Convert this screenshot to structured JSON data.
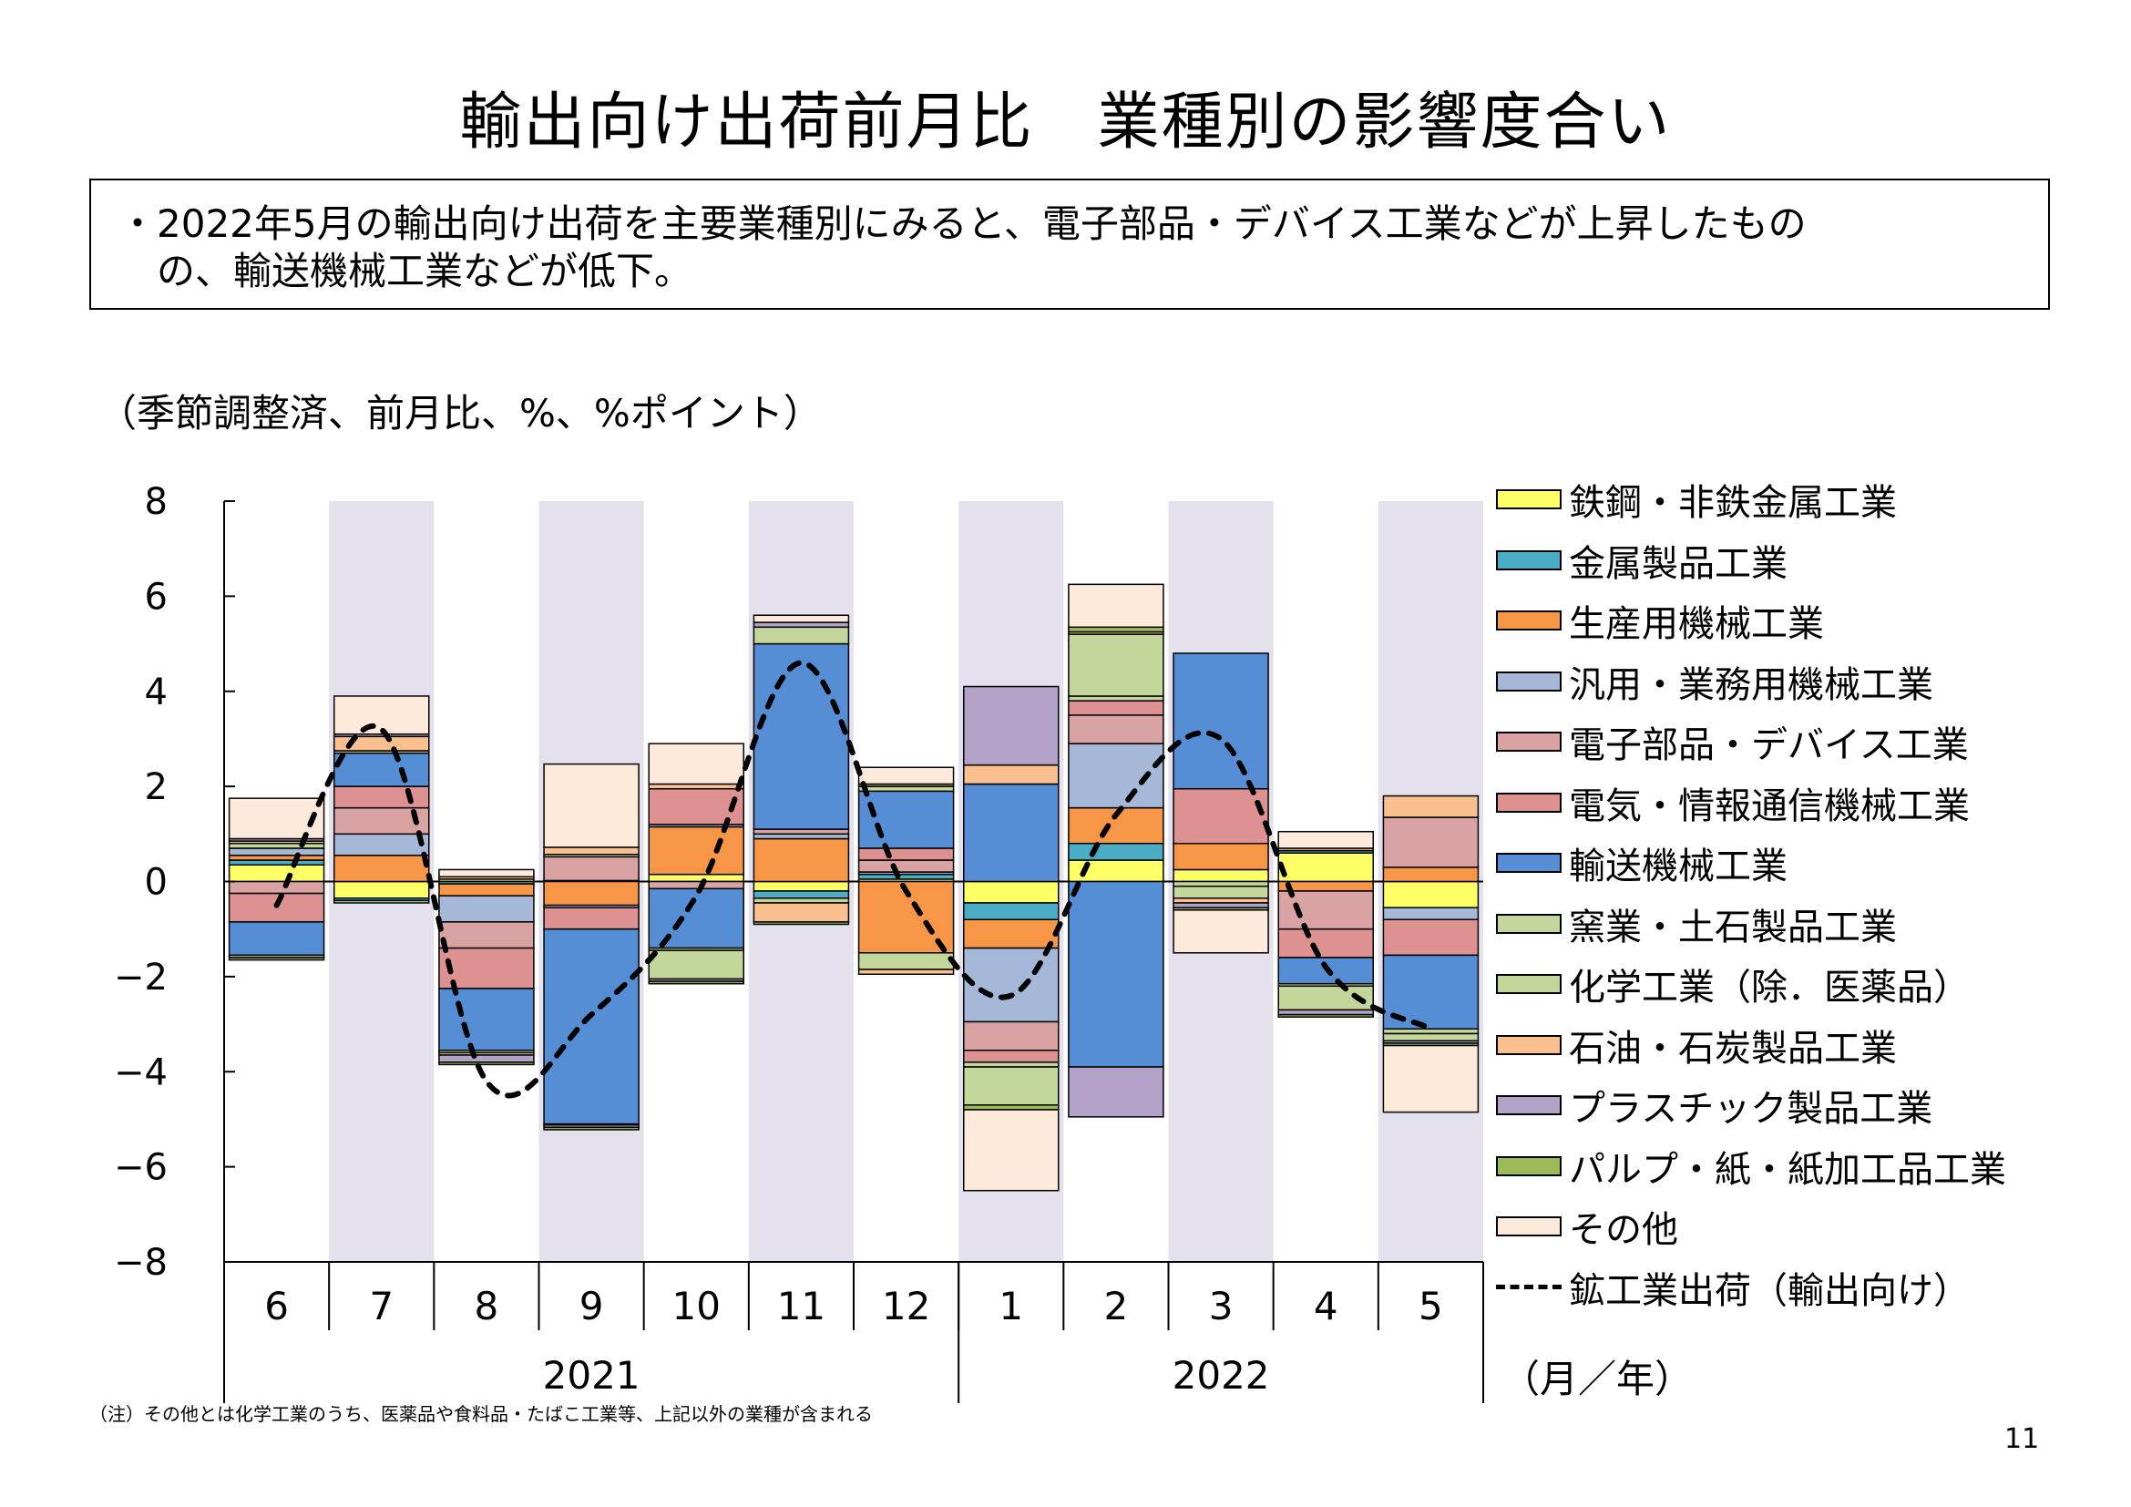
{
  "title": "輸出向け出荷前月比　業種別の影響度合い",
  "summary_line1": "・2022年5月の輸出向け出荷を主要業種別にみると、電子部品・デバイス工業などが上昇したもの",
  "summary_line2": "　の、輸送機械工業などが低下。",
  "unit_note": "（季節調整済、前月比、%、%ポイント）",
  "x_unit": "（月／年）",
  "footnote": "（注）その他とは化学工業のうち、医薬品や食料品・たばこ工業等、上記以外の業種が含まれる",
  "page_number": "11",
  "chart_data": {
    "type": "bar",
    "stacked": true,
    "categories": [
      "6",
      "7",
      "8",
      "9",
      "10",
      "11",
      "12",
      "1",
      "2",
      "3",
      "4",
      "5"
    ],
    "years": [
      {
        "label": "2021",
        "from": 0,
        "to": 6
      },
      {
        "label": "2022",
        "from": 7,
        "to": 11
      }
    ],
    "ylim": [
      -8,
      8
    ],
    "yticks": [
      8,
      6,
      4,
      2,
      0,
      -2,
      -4,
      -6,
      -8
    ],
    "ytick_labels": [
      "8",
      "6",
      "4",
      "2",
      "0",
      "−2",
      "−4",
      "−6",
      "−8"
    ],
    "shaded_columns": [
      1,
      3,
      5,
      7,
      9,
      11
    ],
    "shade_color": "#e5e1ec",
    "series": [
      {
        "name": "鉄鋼・非鉄金属工業",
        "color": "#ffff66",
        "values": [
          0.35,
          -0.35,
          0.05,
          0.02,
          0.15,
          -0.2,
          0.05,
          -0.45,
          0.45,
          0.25,
          0.6,
          -0.55
        ]
      },
      {
        "name": "金属製品工業",
        "color": "#4bacc6",
        "values": [
          0.1,
          -0.05,
          -0.05,
          0.0,
          0.0,
          -0.15,
          0.1,
          -0.35,
          0.35,
          0.0,
          0.05,
          0.0
        ]
      },
      {
        "name": "生産用機械工業",
        "color": "#f79646",
        "values": [
          0.1,
          0.55,
          -0.25,
          -0.5,
          1.0,
          0.9,
          -1.5,
          -0.6,
          0.75,
          0.55,
          -0.2,
          0.3
        ]
      },
      {
        "name": "汎用・業務用機械工業",
        "color": "#a6b8d7",
        "values": [
          0.15,
          0.45,
          -0.55,
          -0.05,
          0.05,
          0.1,
          0.05,
          -1.55,
          1.35,
          0.0,
          0.0,
          -0.25
        ]
      },
      {
        "name": "電子部品・デバイス工業",
        "color": "#d9a3a3",
        "values": [
          -0.25,
          0.55,
          -0.55,
          0.5,
          -0.15,
          0.1,
          0.25,
          -0.6,
          0.6,
          0.0,
          -0.8,
          1.05
        ]
      },
      {
        "name": "電気・情報通信機械工業",
        "color": "#de9191",
        "values": [
          -0.6,
          0.45,
          -0.85,
          -0.45,
          0.75,
          0.0,
          0.25,
          -0.25,
          0.3,
          1.15,
          -0.6,
          -0.75
        ]
      },
      {
        "name": "輸送機械工業",
        "color": "#558ed5",
        "values": [
          -0.7,
          0.7,
          -1.3,
          -4.1,
          -1.25,
          3.9,
          1.2,
          2.05,
          -3.9,
          2.85,
          -0.55,
          -1.55
        ]
      },
      {
        "name": "窯業・土石製品工業",
        "color": "#c3d69b",
        "values": [
          -0.05,
          -0.05,
          -0.05,
          -0.02,
          -0.05,
          -0.1,
          0.1,
          -0.1,
          0.1,
          -0.1,
          -0.05,
          -0.1
        ]
      },
      {
        "name": "化学工業（除．医薬品）",
        "color": "#c4d79b",
        "values": [
          0.1,
          0.05,
          -0.05,
          0.05,
          -0.6,
          0.35,
          -0.35,
          -0.8,
          1.3,
          -0.25,
          -0.5,
          -0.15
        ]
      },
      {
        "name": "石油・石炭製品工業",
        "color": "#fac090",
        "values": [
          0.05,
          0.3,
          0.05,
          0.15,
          0.1,
          -0.4,
          -0.1,
          0.4,
          0.05,
          -0.1,
          0.05,
          0.45
        ]
      },
      {
        "name": "プラスチック製品工業",
        "color": "#b3a2c7",
        "values": [
          0.05,
          0.05,
          -0.15,
          -0.05,
          -0.05,
          0.1,
          0.0,
          1.65,
          -1.05,
          -0.1,
          -0.1,
          -0.05
        ]
      },
      {
        "name": "パルプ・紙・紙加工品工業",
        "color": "#9bbb59",
        "values": [
          -0.05,
          0.0,
          -0.05,
          -0.05,
          -0.05,
          -0.05,
          0.05,
          -0.1,
          0.1,
          -0.05,
          -0.05,
          -0.05
        ]
      },
      {
        "name": "その他",
        "color": "#fdeada",
        "values": [
          0.85,
          0.8,
          0.15,
          1.75,
          0.85,
          0.15,
          0.35,
          -1.7,
          0.9,
          -0.9,
          0.35,
          -1.4
        ]
      }
    ],
    "line": {
      "name": "鉱工業出荷（輸出向け）",
      "values": [
        -0.5,
        3.2,
        -4.2,
        -2.8,
        -0.3,
        4.6,
        -0.2,
        -2.4,
        1.4,
        3.0,
        -1.8,
        -3.1
      ]
    },
    "legend_position": "right"
  }
}
